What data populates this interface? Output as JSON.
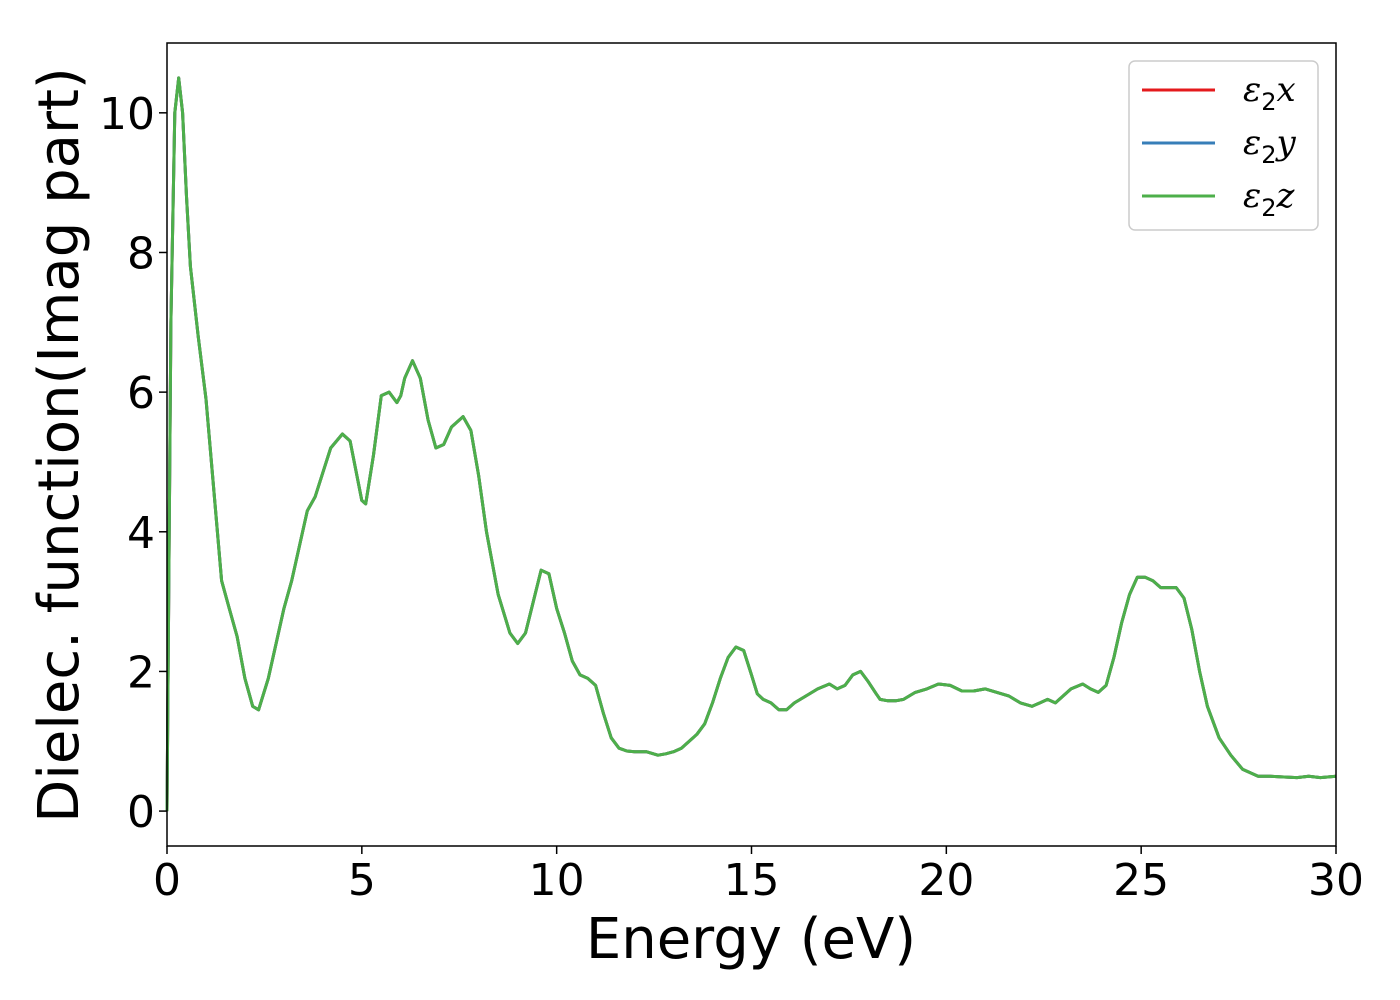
{
  "chart_data": {
    "type": "line",
    "xlabel": "Energy (eV)",
    "ylabel": "Dielec. function(Imag part)",
    "xlim": [
      0,
      30
    ],
    "ylim": [
      -0.5,
      11.0
    ],
    "xticks": [
      0,
      5,
      10,
      15,
      20,
      25,
      30
    ],
    "yticks": [
      0,
      2,
      4,
      6,
      8,
      10
    ],
    "grid": false,
    "legend_position": "top-right",
    "series": [
      {
        "name_main": "ε",
        "name_sub": "2",
        "name_tail": "x",
        "color": "#e41a1c"
      },
      {
        "name_main": "ε",
        "name_sub": "2",
        "name_tail": "y",
        "color": "#377eb8"
      },
      {
        "name_main": "ε",
        "name_sub": "2",
        "name_tail": "z",
        "color": "#4daf4a"
      }
    ],
    "x": [
      0.0,
      0.1,
      0.2,
      0.3,
      0.4,
      0.5,
      0.6,
      0.8,
      1.0,
      1.2,
      1.4,
      1.6,
      1.8,
      2.0,
      2.2,
      2.35,
      2.6,
      2.8,
      3.0,
      3.2,
      3.4,
      3.6,
      3.8,
      4.0,
      4.2,
      4.5,
      4.7,
      5.0,
      5.1,
      5.3,
      5.5,
      5.7,
      5.9,
      6.0,
      6.1,
      6.3,
      6.5,
      6.7,
      6.9,
      7.1,
      7.3,
      7.6,
      7.8,
      8.0,
      8.2,
      8.5,
      8.8,
      9.0,
      9.2,
      9.4,
      9.6,
      9.8,
      10.0,
      10.2,
      10.4,
      10.6,
      10.8,
      11.0,
      11.2,
      11.4,
      11.6,
      11.8,
      12.0,
      12.3,
      12.6,
      12.8,
      13.0,
      13.2,
      13.4,
      13.6,
      13.8,
      14.0,
      14.2,
      14.4,
      14.6,
      14.8,
      15.0,
      15.15,
      15.3,
      15.5,
      15.7,
      15.9,
      16.1,
      16.4,
      16.7,
      17.0,
      17.2,
      17.4,
      17.6,
      17.8,
      18.0,
      18.2,
      18.3,
      18.5,
      18.7,
      18.9,
      19.2,
      19.5,
      19.8,
      20.1,
      20.4,
      20.7,
      21.0,
      21.3,
      21.6,
      21.9,
      22.2,
      22.4,
      22.6,
      22.8,
      23.0,
      23.2,
      23.5,
      23.7,
      23.9,
      24.1,
      24.3,
      24.5,
      24.7,
      24.9,
      25.1,
      25.3,
      25.5,
      25.7,
      25.9,
      26.1,
      26.3,
      26.5,
      26.7,
      27.0,
      27.3,
      27.6,
      27.8,
      28.0,
      28.3,
      28.6,
      29.0,
      29.3,
      29.6,
      30.0
    ],
    "y": [
      0.0,
      7.0,
      10.0,
      10.5,
      10.0,
      8.8,
      7.8,
      6.8,
      5.9,
      4.6,
      3.3,
      2.9,
      2.5,
      1.9,
      1.5,
      1.45,
      1.9,
      2.4,
      2.9,
      3.3,
      3.8,
      4.3,
      4.5,
      4.85,
      5.2,
      5.4,
      5.3,
      4.45,
      4.4,
      5.1,
      5.95,
      6.0,
      5.85,
      5.95,
      6.2,
      6.45,
      6.2,
      5.6,
      5.2,
      5.25,
      5.5,
      5.65,
      5.45,
      4.8,
      4.0,
      3.1,
      2.55,
      2.4,
      2.55,
      3.0,
      3.45,
      3.4,
      2.9,
      2.55,
      2.15,
      1.95,
      1.9,
      1.8,
      1.4,
      1.05,
      0.9,
      0.86,
      0.85,
      0.85,
      0.8,
      0.82,
      0.85,
      0.9,
      1.0,
      1.1,
      1.25,
      1.55,
      1.9,
      2.2,
      2.35,
      2.3,
      1.95,
      1.68,
      1.6,
      1.55,
      1.45,
      1.45,
      1.55,
      1.65,
      1.75,
      1.82,
      1.75,
      1.8,
      1.95,
      2.0,
      1.85,
      1.68,
      1.6,
      1.58,
      1.58,
      1.6,
      1.7,
      1.75,
      1.82,
      1.8,
      1.72,
      1.72,
      1.75,
      1.7,
      1.65,
      1.55,
      1.5,
      1.55,
      1.6,
      1.55,
      1.65,
      1.75,
      1.82,
      1.75,
      1.7,
      1.8,
      2.2,
      2.7,
      3.1,
      3.35,
      3.35,
      3.3,
      3.2,
      3.2,
      3.2,
      3.05,
      2.6,
      2.0,
      1.5,
      1.05,
      0.8,
      0.6,
      0.55,
      0.5,
      0.5,
      0.49,
      0.48,
      0.5,
      0.48,
      0.5
    ]
  }
}
